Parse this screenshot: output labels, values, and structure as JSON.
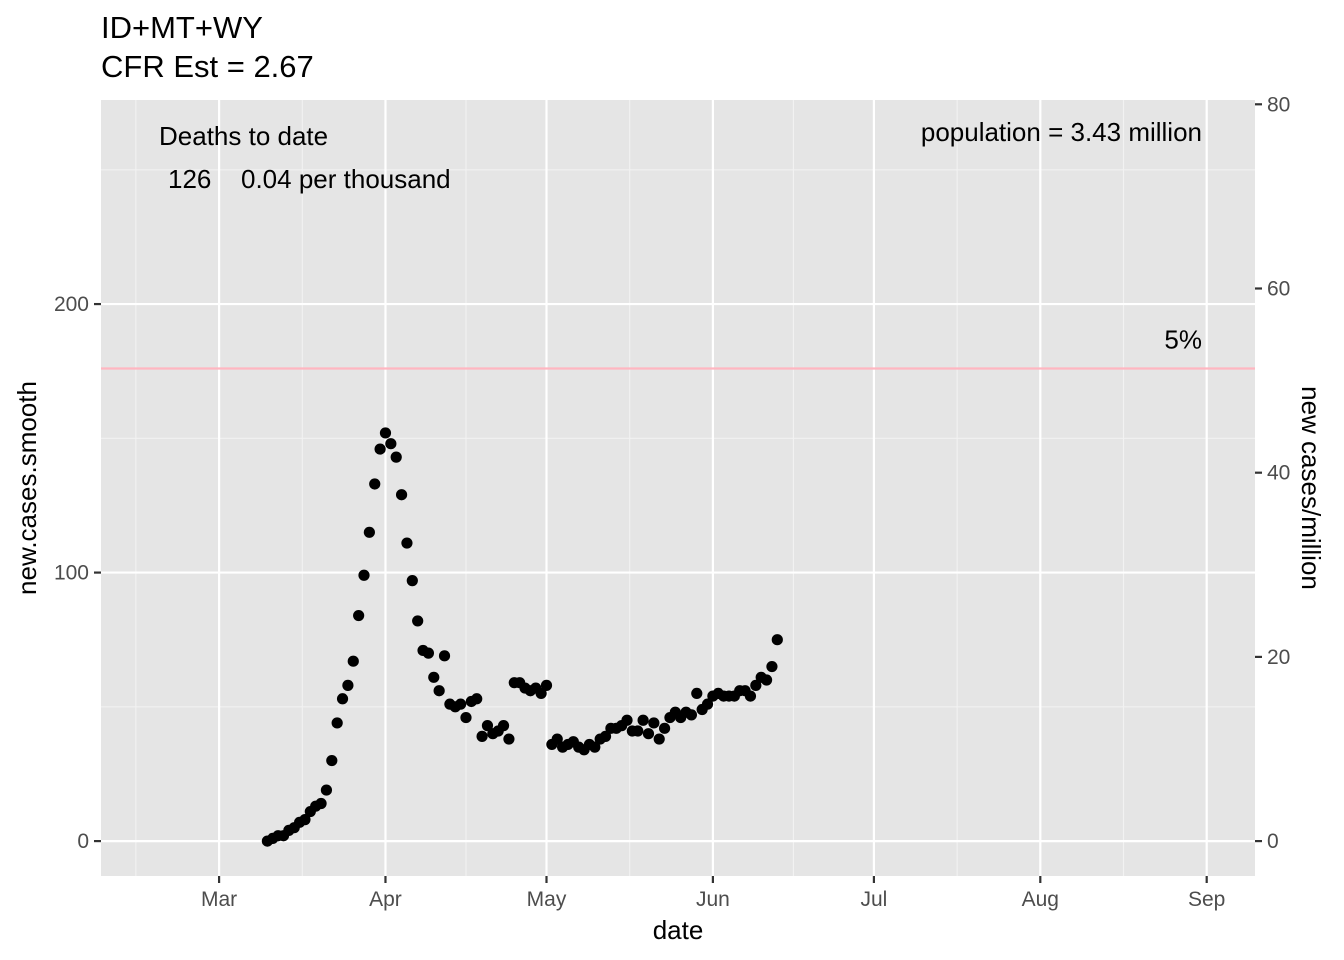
{
  "chart_data": {
    "type": "scatter",
    "title": "ID+MT+WY",
    "subtitle": "CFR Est = 2.67",
    "xlabel": "date",
    "ylabel": "new.cases.smooth",
    "y2label": "new cases/million",
    "x_tick_labels": [
      "Mar",
      "Apr",
      "May",
      "Jun",
      "Jul",
      "Aug",
      "Sep"
    ],
    "x_tick_dates": [
      "2020-03-01",
      "2020-04-01",
      "2020-05-01",
      "2020-06-01",
      "2020-07-01",
      "2020-08-01",
      "2020-09-01"
    ],
    "xlim": [
      "2020-02-08",
      "2020-09-10"
    ],
    "ylim": [
      -13,
      276
    ],
    "y_ticks": [
      0,
      100,
      200
    ],
    "y2_ticks": [
      0,
      20,
      40,
      60,
      80
    ],
    "population_millions": 3.43,
    "grid": true,
    "background": "#e5e5e5",
    "reference_line": {
      "y": 176,
      "color": "#ffb6c1",
      "label": "5%"
    },
    "annotations": {
      "deaths_heading": "Deaths to date",
      "deaths_count": "126",
      "deaths_rate": "0.04 per thousand",
      "population": "population = 3.43 million"
    },
    "series": [
      {
        "color": "#000000",
        "points": [
          [
            "2020-03-10",
            0
          ],
          [
            "2020-03-11",
            1
          ],
          [
            "2020-03-12",
            2
          ],
          [
            "2020-03-13",
            2
          ],
          [
            "2020-03-14",
            4
          ],
          [
            "2020-03-15",
            5
          ],
          [
            "2020-03-16",
            7
          ],
          [
            "2020-03-17",
            8
          ],
          [
            "2020-03-18",
            11
          ],
          [
            "2020-03-19",
            13
          ],
          [
            "2020-03-20",
            14
          ],
          [
            "2020-03-21",
            19
          ],
          [
            "2020-03-22",
            30
          ],
          [
            "2020-03-23",
            44
          ],
          [
            "2020-03-24",
            53
          ],
          [
            "2020-03-25",
            58
          ],
          [
            "2020-03-26",
            67
          ],
          [
            "2020-03-27",
            84
          ],
          [
            "2020-03-28",
            99
          ],
          [
            "2020-03-29",
            115
          ],
          [
            "2020-03-30",
            133
          ],
          [
            "2020-03-31",
            146
          ],
          [
            "2020-04-01",
            152
          ],
          [
            "2020-04-02",
            148
          ],
          [
            "2020-04-03",
            143
          ],
          [
            "2020-04-04",
            129
          ],
          [
            "2020-04-05",
            111
          ],
          [
            "2020-04-06",
            97
          ],
          [
            "2020-04-07",
            82
          ],
          [
            "2020-04-08",
            71
          ],
          [
            "2020-04-09",
            70
          ],
          [
            "2020-04-10",
            61
          ],
          [
            "2020-04-11",
            56
          ],
          [
            "2020-04-12",
            69
          ],
          [
            "2020-04-13",
            51
          ],
          [
            "2020-04-14",
            50
          ],
          [
            "2020-04-15",
            51
          ],
          [
            "2020-04-16",
            46
          ],
          [
            "2020-04-17",
            52
          ],
          [
            "2020-04-18",
            53
          ],
          [
            "2020-04-19",
            39
          ],
          [
            "2020-04-20",
            43
          ],
          [
            "2020-04-21",
            40
          ],
          [
            "2020-04-22",
            41
          ],
          [
            "2020-04-23",
            43
          ],
          [
            "2020-04-24",
            38
          ],
          [
            "2020-04-25",
            59
          ],
          [
            "2020-04-26",
            59
          ],
          [
            "2020-04-27",
            57
          ],
          [
            "2020-04-28",
            56
          ],
          [
            "2020-04-29",
            57
          ],
          [
            "2020-04-30",
            55
          ],
          [
            "2020-05-01",
            58
          ],
          [
            "2020-05-02",
            36
          ],
          [
            "2020-05-03",
            38
          ],
          [
            "2020-05-04",
            35
          ],
          [
            "2020-05-05",
            36
          ],
          [
            "2020-05-06",
            37
          ],
          [
            "2020-05-07",
            35
          ],
          [
            "2020-05-08",
            34
          ],
          [
            "2020-05-09",
            36
          ],
          [
            "2020-05-10",
            35
          ],
          [
            "2020-05-11",
            38
          ],
          [
            "2020-05-12",
            39
          ],
          [
            "2020-05-13",
            42
          ],
          [
            "2020-05-14",
            42
          ],
          [
            "2020-05-15",
            43
          ],
          [
            "2020-05-16",
            45
          ],
          [
            "2020-05-17",
            41
          ],
          [
            "2020-05-18",
            41
          ],
          [
            "2020-05-19",
            45
          ],
          [
            "2020-05-20",
            40
          ],
          [
            "2020-05-21",
            44
          ],
          [
            "2020-05-22",
            38
          ],
          [
            "2020-05-23",
            42
          ],
          [
            "2020-05-24",
            46
          ],
          [
            "2020-05-25",
            48
          ],
          [
            "2020-05-26",
            46
          ],
          [
            "2020-05-27",
            48
          ],
          [
            "2020-05-28",
            47
          ],
          [
            "2020-05-29",
            55
          ],
          [
            "2020-05-30",
            49
          ],
          [
            "2020-05-31",
            51
          ],
          [
            "2020-06-01",
            54
          ],
          [
            "2020-06-02",
            55
          ],
          [
            "2020-06-03",
            54
          ],
          [
            "2020-06-04",
            54
          ],
          [
            "2020-06-05",
            54
          ],
          [
            "2020-06-06",
            56
          ],
          [
            "2020-06-07",
            56
          ],
          [
            "2020-06-08",
            54
          ],
          [
            "2020-06-09",
            58
          ],
          [
            "2020-06-10",
            61
          ],
          [
            "2020-06-11",
            60
          ],
          [
            "2020-06-12",
            65
          ],
          [
            "2020-06-13",
            75
          ]
        ]
      }
    ]
  }
}
